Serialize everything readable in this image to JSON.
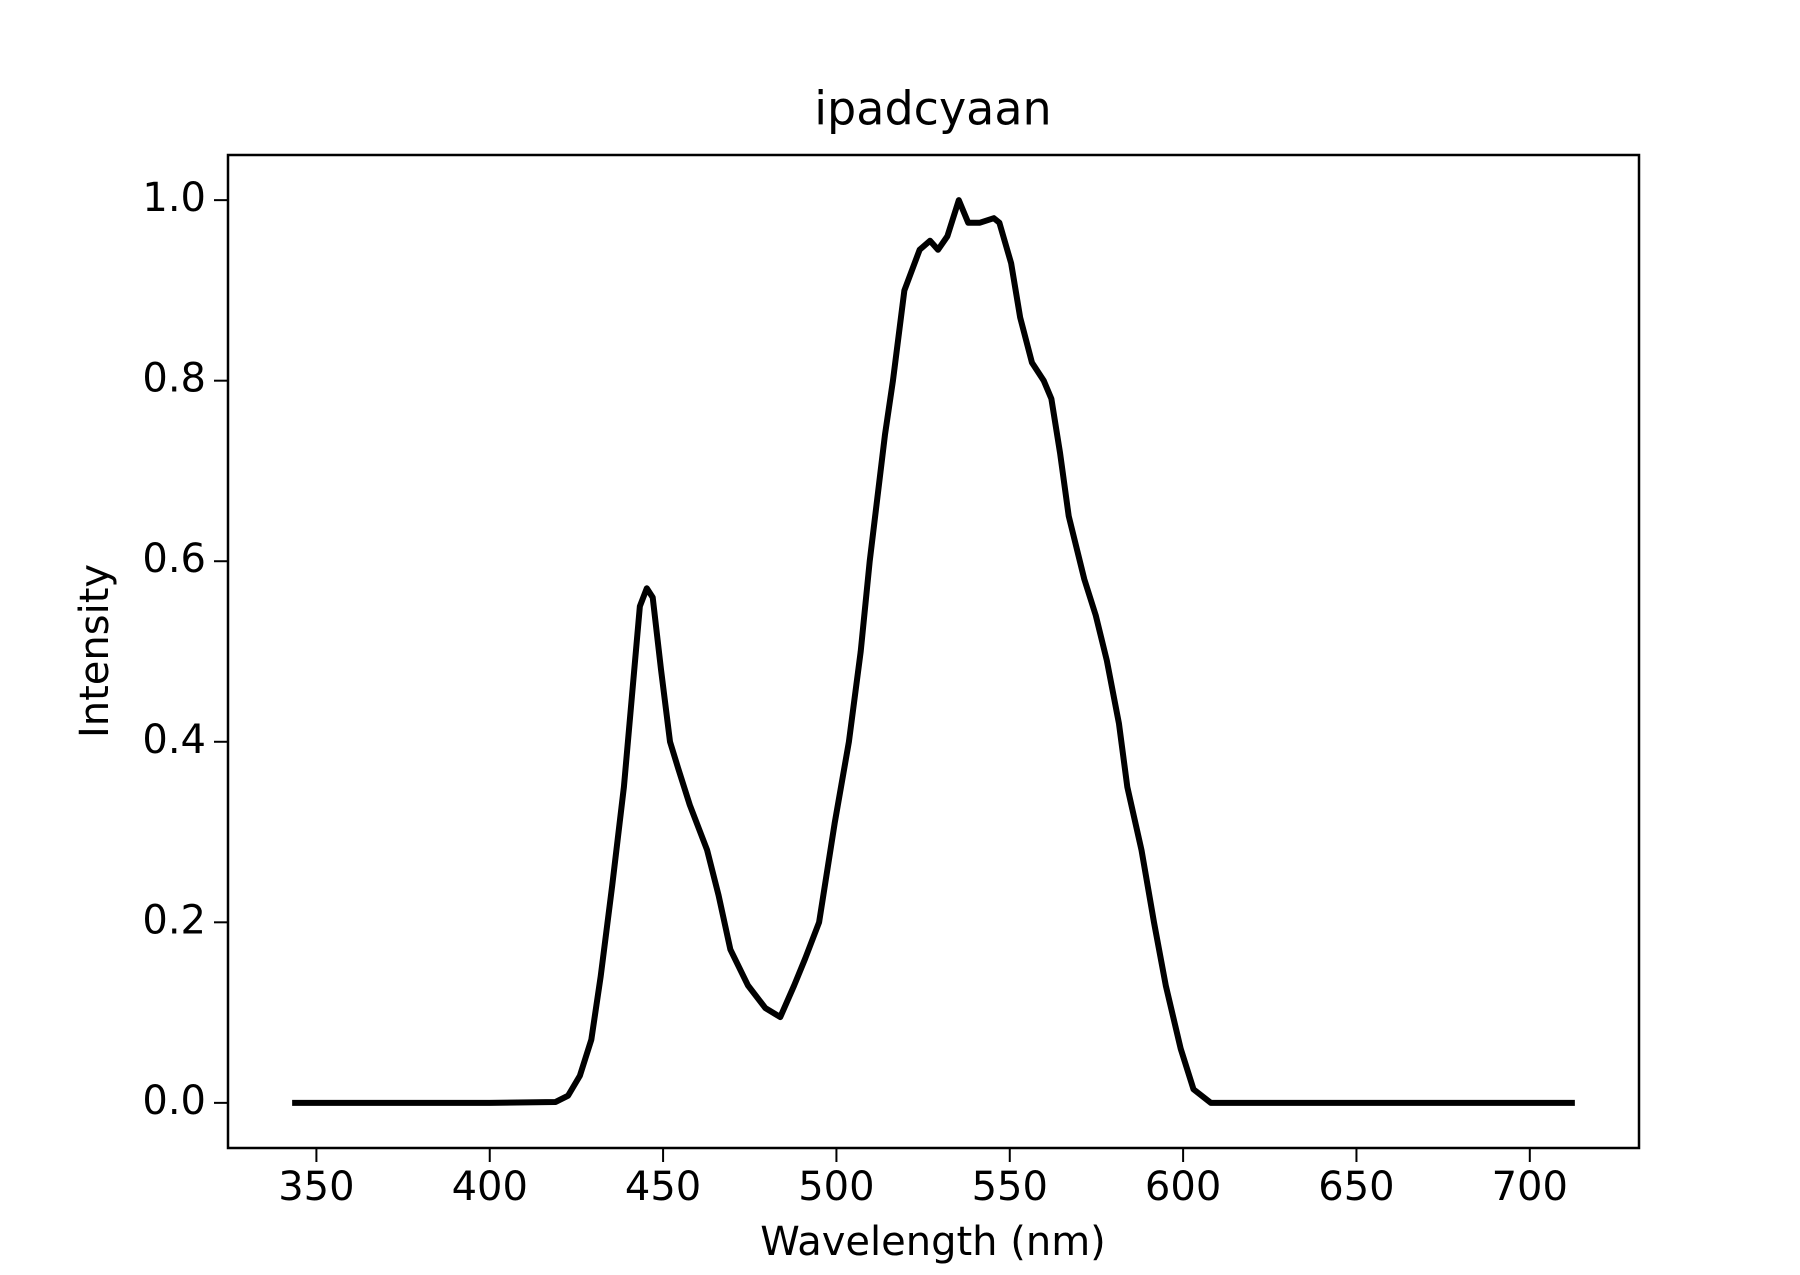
{
  "chart_data": {
    "type": "line",
    "title": "ipadcyaan",
    "x_label": "Wavelength (nm)",
    "y_label": "Intensity",
    "x": [
      343,
      355,
      400,
      419,
      422.6,
      426,
      429.3,
      432,
      435.3,
      438.7,
      441,
      443.3,
      445.3,
      447,
      449.4,
      452,
      454.4,
      457.7,
      462.7,
      466,
      469.4,
      474.5,
      479.5,
      483.8,
      487.8,
      491,
      495,
      499.5,
      503.6,
      507,
      509.6,
      514,
      516.3,
      519.6,
      524,
      527,
      529.3,
      532,
      535.3,
      538,
      541.4,
      545.4,
      547,
      550.4,
      553,
      556.4,
      559.8,
      562,
      564.5,
      567,
      571.5,
      574.8,
      578,
      581.5,
      583.9,
      588,
      591.6,
      595,
      599.3,
      603,
      608,
      650,
      713
    ],
    "series": [
      {
        "name": "ipadcyaan",
        "color": "#000000",
        "values": [
          0,
          0,
          0,
          0.001,
          0.008,
          0.03,
          0.07,
          0.14,
          0.24,
          0.35,
          0.45,
          0.55,
          0.57,
          0.56,
          0.48,
          0.4,
          0.37,
          0.33,
          0.28,
          0.23,
          0.17,
          0.13,
          0.105,
          0.095,
          0.13,
          0.16,
          0.2,
          0.31,
          0.4,
          0.5,
          0.6,
          0.74,
          0.8,
          0.9,
          0.945,
          0.955,
          0.945,
          0.96,
          1.0,
          0.975,
          0.975,
          0.98,
          0.975,
          0.93,
          0.87,
          0.82,
          0.8,
          0.78,
          0.72,
          0.65,
          0.58,
          0.54,
          0.49,
          0.42,
          0.35,
          0.28,
          0.2,
          0.13,
          0.06,
          0.015,
          0,
          0,
          0
        ]
      }
    ],
    "xlim": [
      324.5,
      731.5
    ],
    "ylim": [
      -0.05,
      1.05
    ],
    "xticks": [
      350,
      400,
      450,
      500,
      550,
      600,
      650,
      700
    ],
    "yticks": [
      {
        "value": 0,
        "label": "0.0"
      },
      {
        "value": 0.2,
        "label": "0.2"
      },
      {
        "value": 0.4,
        "label": "0.4"
      },
      {
        "value": 0.6,
        "label": "0.6"
      },
      {
        "value": 0.8,
        "label": "0.8"
      },
      {
        "value": 1,
        "label": "1.0"
      }
    ],
    "grid": false
  }
}
